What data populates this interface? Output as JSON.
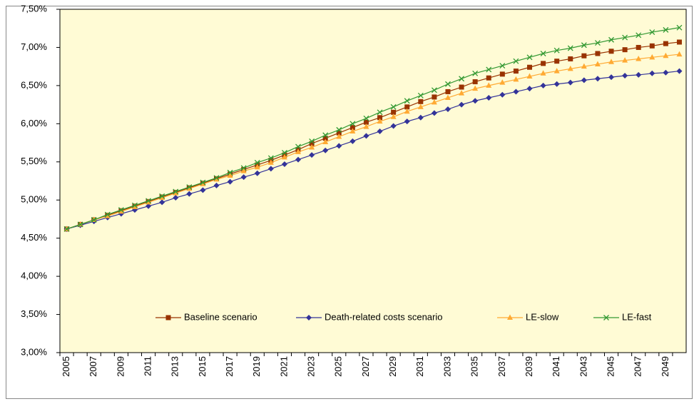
{
  "chart_data": {
    "type": "line",
    "categories": [
      "2005",
      null,
      "2007",
      null,
      "2009",
      null,
      "2011",
      null,
      "2013",
      null,
      "2015",
      null,
      "2017",
      null,
      "2019",
      null,
      "2021",
      null,
      "2023",
      null,
      "2025",
      null,
      "2027",
      null,
      "2029",
      null,
      "2031",
      null,
      "2033",
      null,
      "2035",
      null,
      "2037",
      null,
      "2039",
      null,
      "2041",
      null,
      "2043",
      null,
      "2045",
      null,
      "2047",
      null,
      "2049",
      null
    ],
    "series": [
      {
        "name": "Baseline scenario",
        "color": "#993300",
        "marker": "square",
        "values": [
          4.62,
          4.68,
          4.74,
          4.8,
          4.86,
          4.92,
          4.98,
          5.04,
          5.1,
          5.16,
          5.22,
          5.28,
          5.34,
          5.4,
          5.46,
          5.52,
          5.59,
          5.66,
          5.74,
          5.81,
          5.88,
          5.95,
          6.02,
          6.08,
          6.15,
          6.22,
          6.29,
          6.35,
          6.42,
          6.48,
          6.55,
          6.6,
          6.65,
          6.69,
          6.74,
          6.79,
          6.82,
          6.85,
          6.89,
          6.92,
          6.95,
          6.97,
          7.0,
          7.02,
          7.05,
          7.07
        ]
      },
      {
        "name": "Death-related costs scenario",
        "color": "#333399",
        "marker": "diamond",
        "values": [
          4.62,
          4.67,
          4.72,
          4.77,
          4.82,
          4.87,
          4.92,
          4.97,
          5.03,
          5.08,
          5.13,
          5.19,
          5.24,
          5.3,
          5.35,
          5.41,
          5.47,
          5.53,
          5.59,
          5.65,
          5.71,
          5.77,
          5.84,
          5.9,
          5.97,
          6.03,
          6.08,
          6.14,
          6.19,
          6.25,
          6.3,
          6.34,
          6.38,
          6.42,
          6.46,
          6.5,
          6.52,
          6.54,
          6.57,
          6.59,
          6.61,
          6.63,
          6.64,
          6.66,
          6.67,
          6.69
        ]
      },
      {
        "name": "LE-slow",
        "color": "#FFAA33",
        "marker": "triangle",
        "values": [
          4.62,
          4.68,
          4.74,
          4.79,
          4.85,
          4.91,
          4.97,
          5.03,
          5.09,
          5.15,
          5.21,
          5.27,
          5.32,
          5.38,
          5.43,
          5.49,
          5.56,
          5.63,
          5.69,
          5.76,
          5.83,
          5.9,
          5.96,
          6.03,
          6.09,
          6.16,
          6.22,
          6.28,
          6.34,
          6.4,
          6.46,
          6.5,
          6.54,
          6.58,
          6.62,
          6.66,
          6.69,
          6.72,
          6.75,
          6.78,
          6.81,
          6.83,
          6.85,
          6.87,
          6.89,
          6.91
        ]
      },
      {
        "name": "LE-fast",
        "color": "#339933",
        "marker": "cross",
        "values": [
          4.62,
          4.68,
          4.74,
          4.81,
          4.87,
          4.93,
          4.99,
          5.05,
          5.11,
          5.17,
          5.23,
          5.29,
          5.36,
          5.42,
          5.49,
          5.55,
          5.62,
          5.7,
          5.77,
          5.85,
          5.92,
          6.0,
          6.07,
          6.15,
          6.22,
          6.3,
          6.37,
          6.44,
          6.52,
          6.59,
          6.66,
          6.71,
          6.76,
          6.82,
          6.87,
          6.92,
          6.96,
          6.99,
          7.03,
          7.06,
          7.1,
          7.13,
          7.16,
          7.2,
          7.23,
          7.26
        ]
      }
    ],
    "ylim": [
      3.0,
      7.5
    ],
    "yticks": [
      {
        "value": 3.0,
        "label": "3,00%"
      },
      {
        "value": 3.5,
        "label": "3,50%"
      },
      {
        "value": 4.0,
        "label": "4,00%"
      },
      {
        "value": 4.5,
        "label": "4,50%"
      },
      {
        "value": 5.0,
        "label": "5,00%"
      },
      {
        "value": 5.5,
        "label": "5,50%"
      },
      {
        "value": 6.0,
        "label": "6,00%"
      },
      {
        "value": 6.5,
        "label": "6,50%"
      },
      {
        "value": 7.0,
        "label": "7,00%"
      },
      {
        "value": 7.5,
        "label": "7,50%"
      }
    ],
    "plot_background": "#FFFBD5",
    "legend": "bottom"
  }
}
